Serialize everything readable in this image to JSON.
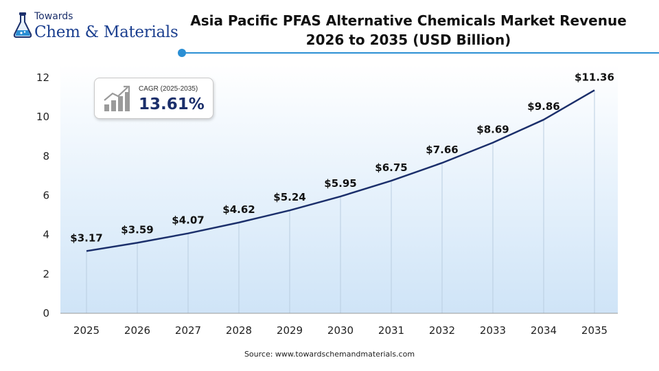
{
  "logo": {
    "line1": "Towards",
    "line2": "Chem & Materials",
    "icon": "flask-icon"
  },
  "title_line1": "Asia Pacific PFAS Alternative Chemicals Market Revenue",
  "title_line2": "2026 to 2035 (USD Billion)",
  "cagr": {
    "label": "CAGR (2025-2035)",
    "value": "13.61%",
    "icon": "growth-bar-chart-icon"
  },
  "source": "Source: www.towardschemandmaterials.com",
  "colors": {
    "line": "#1b2f6b",
    "accent": "#2b8fd4",
    "plot_gradient_bottom": "#cfe4f7"
  },
  "chart_data": {
    "type": "line",
    "title": "Asia Pacific PFAS Alternative Chemicals Market Revenue 2026 to 2035 (USD Billion)",
    "categories": [
      "2025",
      "2026",
      "2027",
      "2028",
      "2029",
      "2030",
      "2031",
      "2032",
      "2033",
      "2034",
      "2035"
    ],
    "series": [
      {
        "values": [
          3.17,
          3.59,
          4.07,
          4.62,
          5.24,
          5.95,
          6.75,
          7.66,
          8.69,
          9.86,
          11.36
        ]
      }
    ],
    "data_labels": [
      "$3.17",
      "$3.59",
      "$4.07",
      "$4.62",
      "$5.24",
      "$5.95",
      "$6.75",
      "$7.66",
      "$8.69",
      "$9.86",
      "$11.36"
    ],
    "yticks": [
      0,
      2,
      4,
      6,
      8,
      10,
      12
    ],
    "ylim": [
      0,
      12
    ],
    "xlabel": "",
    "ylabel": "",
    "grid": "vertical drop lines per point",
    "legend": "none"
  }
}
